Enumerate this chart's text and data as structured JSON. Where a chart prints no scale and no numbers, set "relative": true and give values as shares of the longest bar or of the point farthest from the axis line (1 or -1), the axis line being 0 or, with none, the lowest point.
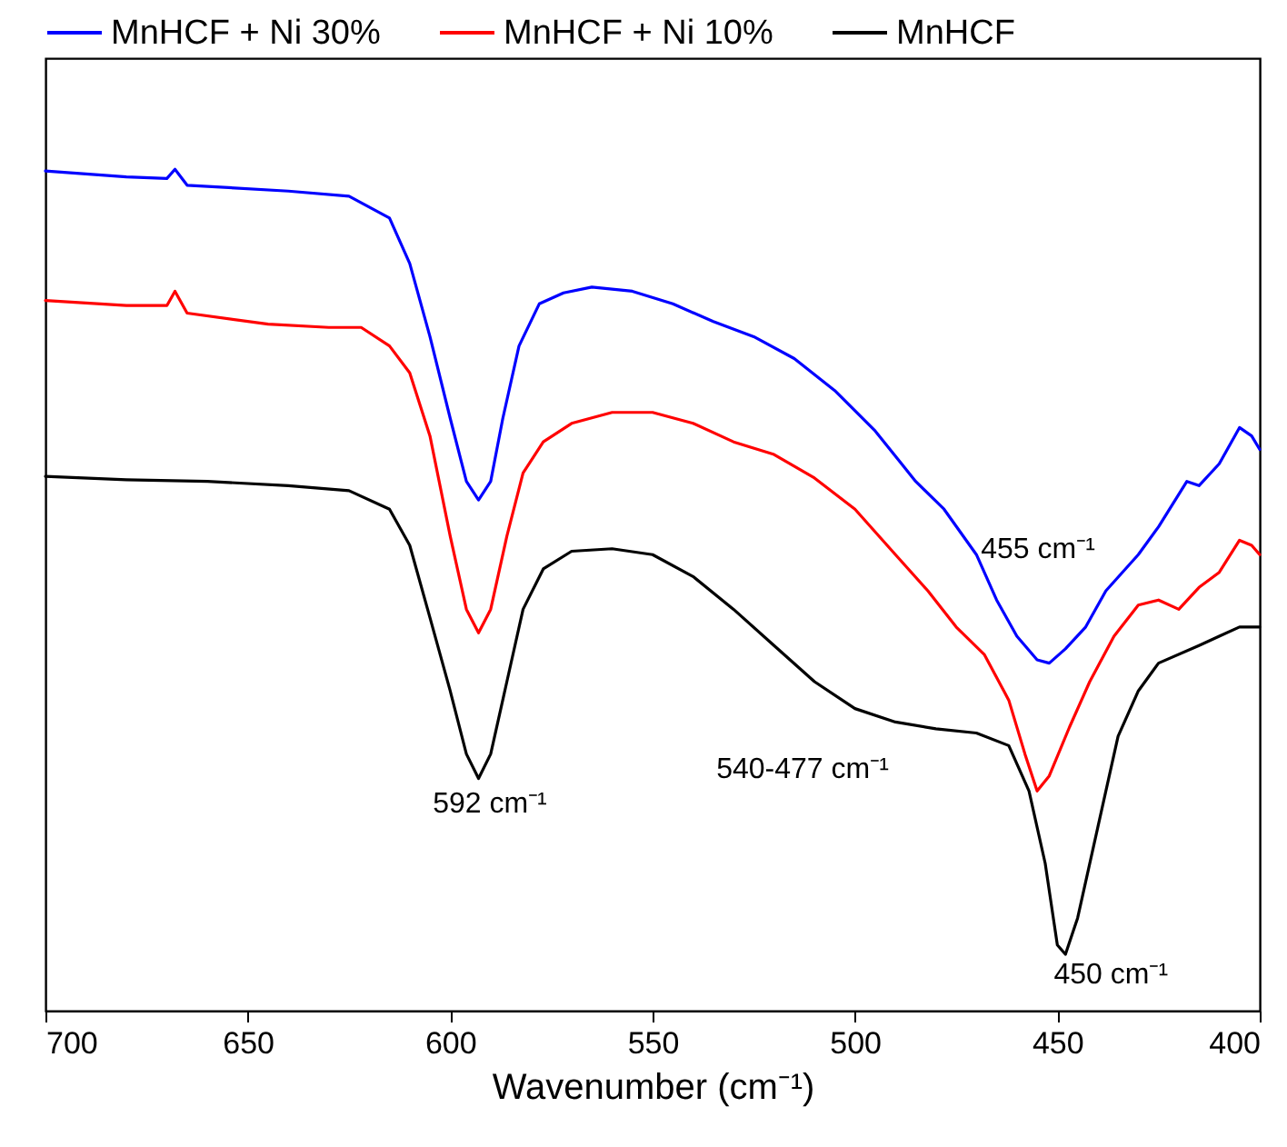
{
  "chart_data": {
    "type": "line",
    "relative": true,
    "xlabel": "Wavenumber (cm⁻¹)",
    "xlim": [
      700,
      400
    ],
    "xticks": [
      700,
      650,
      600,
      550,
      500,
      450,
      400
    ],
    "grid": false,
    "legend": "top",
    "marker": "none",
    "line_style": "solid",
    "x": [
      700,
      680,
      670,
      668,
      665,
      640,
      625,
      615,
      610,
      605,
      600,
      596,
      593,
      590,
      587,
      583,
      578,
      572,
      565,
      555,
      545,
      535,
      525,
      515,
      505,
      495,
      485,
      478,
      470,
      465,
      460,
      455,
      452,
      448,
      443,
      438,
      430,
      425,
      418,
      415,
      410,
      405,
      402,
      400
    ],
    "series": [
      {
        "name": "MnHCF + Ni 30%",
        "color": "#0000ff",
        "values": [
          0.998,
          0.991,
          0.989,
          1.0,
          0.981,
          0.974,
          0.968,
          0.942,
          0.888,
          0.801,
          0.704,
          0.629,
          0.607,
          0.629,
          0.704,
          0.79,
          0.84,
          0.853,
          0.86,
          0.855,
          0.84,
          0.819,
          0.801,
          0.775,
          0.737,
          0.689,
          0.629,
          0.596,
          0.542,
          0.488,
          0.445,
          0.417,
          0.413,
          0.43,
          0.456,
          0.499,
          0.542,
          0.575,
          0.629,
          0.624,
          0.65,
          0.693,
          0.683,
          0.667
        ]
      },
      {
        "name": "MnHCF + Ni 10%",
        "color": "#ff0000",
        "x": [
          700,
          680,
          670,
          668,
          665,
          645,
          630,
          622,
          615,
          610,
          605,
          600,
          596,
          593,
          590,
          586,
          582,
          577,
          570,
          560,
          550,
          540,
          530,
          520,
          510,
          500,
          490,
          482,
          475,
          468,
          462,
          458,
          455,
          452,
          447,
          442,
          436,
          430,
          425,
          420,
          415,
          410,
          405,
          402,
          400
        ],
        "values": [
          0.844,
          0.838,
          0.838,
          0.855,
          0.829,
          0.816,
          0.812,
          0.812,
          0.79,
          0.758,
          0.683,
          0.564,
          0.477,
          0.449,
          0.477,
          0.564,
          0.639,
          0.676,
          0.698,
          0.711,
          0.711,
          0.698,
          0.676,
          0.661,
          0.633,
          0.596,
          0.542,
          0.499,
          0.456,
          0.423,
          0.369,
          0.305,
          0.261,
          0.279,
          0.337,
          0.391,
          0.445,
          0.482,
          0.488,
          0.477,
          0.503,
          0.521,
          0.559,
          0.553,
          0.542
        ]
      },
      {
        "name": "MnHCF",
        "color": "#000000",
        "x": [
          700,
          680,
          660,
          640,
          625,
          615,
          610,
          605,
          600,
          596,
          593,
          590,
          586,
          582,
          577,
          570,
          560,
          550,
          540,
          530,
          520,
          510,
          500,
          490,
          480,
          470,
          462,
          457,
          453,
          450,
          448,
          445,
          440,
          435,
          430,
          425,
          415,
          410,
          405,
          400
        ],
        "values": [
          0.635,
          0.631,
          0.629,
          0.624,
          0.618,
          0.596,
          0.553,
          0.467,
          0.38,
          0.305,
          0.276,
          0.305,
          0.391,
          0.477,
          0.525,
          0.546,
          0.549,
          0.542,
          0.516,
          0.477,
          0.434,
          0.391,
          0.359,
          0.343,
          0.335,
          0.33,
          0.315,
          0.261,
          0.175,
          0.078,
          0.067,
          0.11,
          0.218,
          0.326,
          0.38,
          0.413,
          0.434,
          0.445,
          0.456,
          0.456
        ]
      }
    ],
    "annotations": [
      {
        "text": "592 cm⁻¹",
        "x": 592,
        "y": 0.276
      },
      {
        "text": "540-477 cm⁻¹",
        "x": 508,
        "y": 0.385
      },
      {
        "text": "450 cm⁻¹",
        "x": 448,
        "y": 0.067
      },
      "455 cm⁻¹"
    ]
  }
}
